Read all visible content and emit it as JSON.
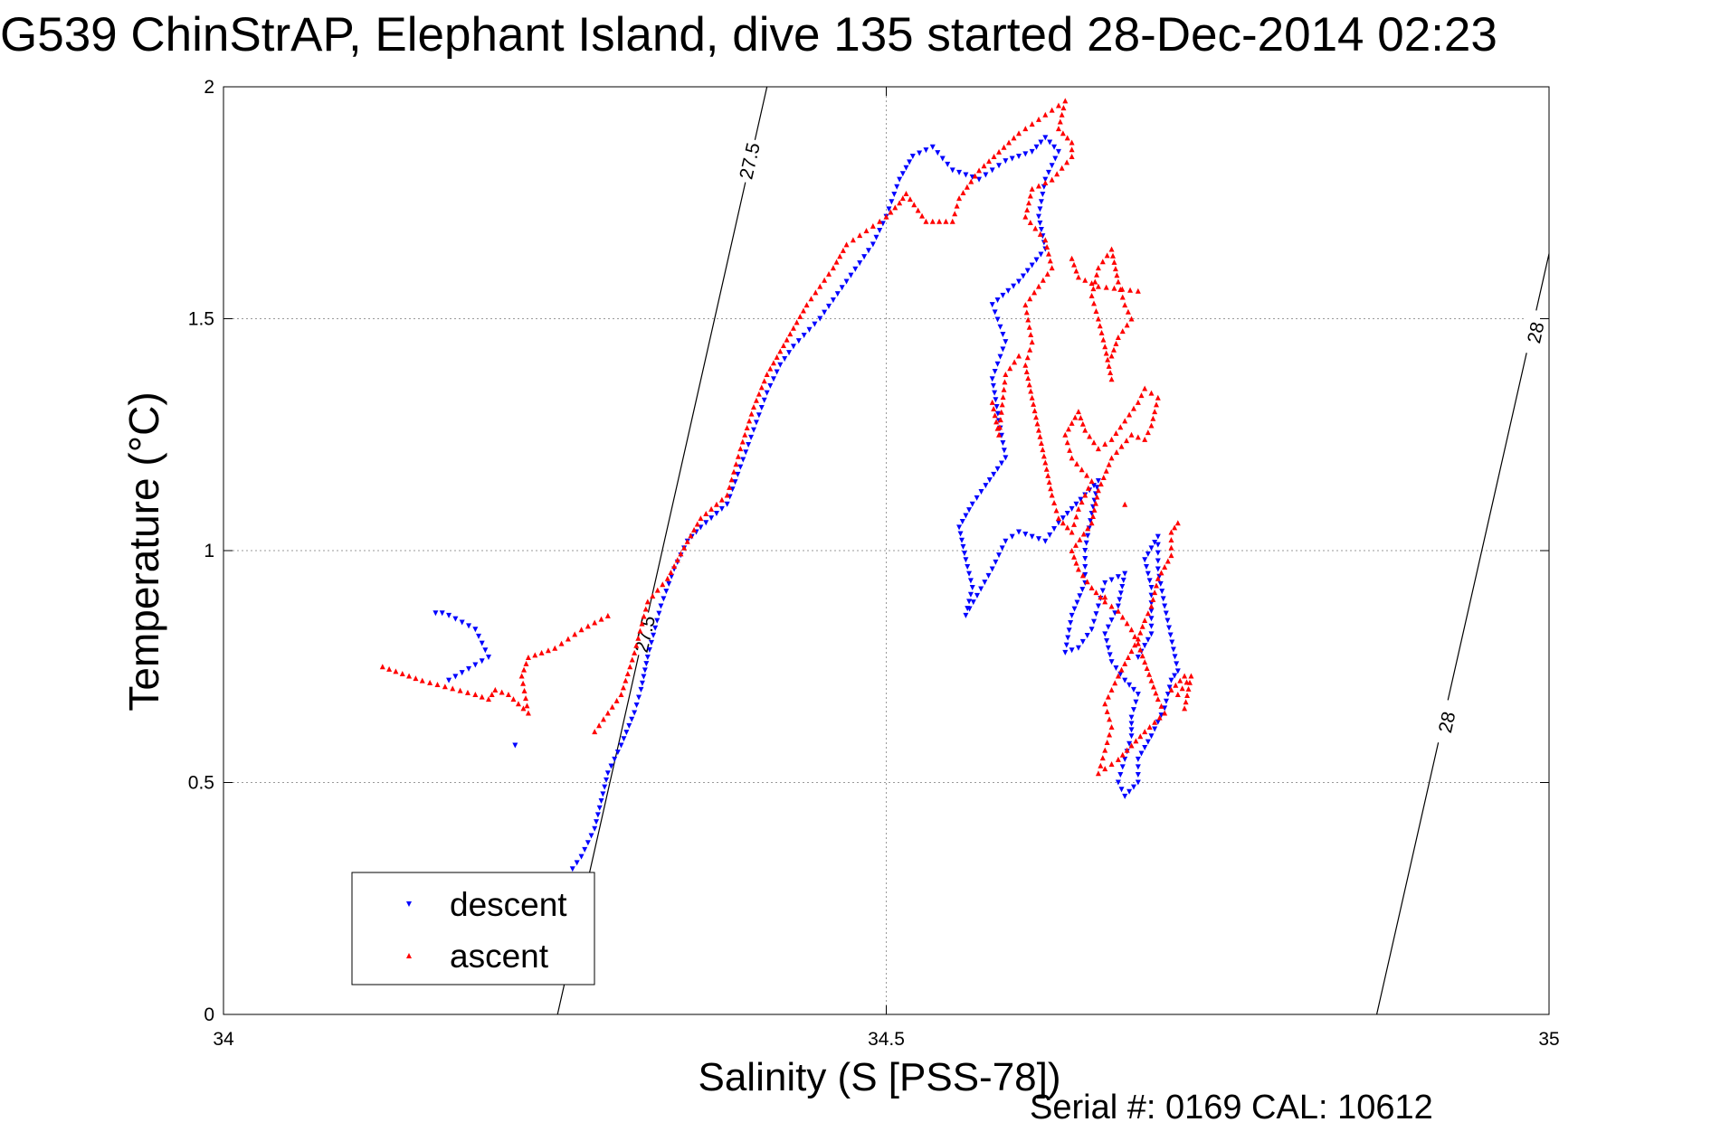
{
  "title": "G539 ChinStrAP, Elephant Island, dive 135 started 28-Dec-2014 02:23",
  "footer_note": "Serial #: 0169 CAL: 10612",
  "colors": {
    "descent": "#0000ff",
    "ascent": "#ff0000",
    "axis": "#000000",
    "grid": "#9a9a9a",
    "isopycnal": "#000000"
  },
  "chart_data": {
    "type": "scatter",
    "xlabel": "Salinity (S [PSS-78])",
    "ylabel": "Temperature (°C)",
    "xlim": [
      34,
      35
    ],
    "ylim": [
      0,
      2
    ],
    "xticks": [
      34,
      34.5,
      35
    ],
    "xtick_labels": [
      "34",
      "34.5",
      "35"
    ],
    "yticks": [
      0,
      0.5,
      1,
      1.5,
      2
    ],
    "ytick_labels": [
      "0",
      "0.5",
      "1",
      "1.5",
      "2"
    ],
    "grid": true,
    "grid_style": "dotted",
    "legend_position": "bottom-left",
    "isopycnals": [
      {
        "label": "27.5",
        "points": [
          [
            34.252,
            0
          ],
          [
            34.41,
            2
          ]
        ],
        "label_positions": [
          [
            34.318,
            0.82
          ],
          [
            34.397,
            1.84
          ]
        ]
      },
      {
        "label": "28",
        "points": [
          [
            34.87,
            0
          ],
          [
            35,
            1.64
          ]
        ],
        "label_positions": [
          [
            34.923,
            0.63
          ],
          [
            34.99,
            1.47
          ]
        ]
      }
    ],
    "series": [
      {
        "name": "descent",
        "marker": "triangle-down",
        "color": "#0000ff",
        "path": [
          [
            34.26,
            0.3
          ],
          [
            34.27,
            0.34
          ],
          [
            34.28,
            0.4
          ],
          [
            34.285,
            0.46
          ],
          [
            34.29,
            0.52
          ],
          [
            34.3,
            0.58
          ],
          [
            34.31,
            0.65
          ],
          [
            34.315,
            0.7
          ],
          [
            34.32,
            0.77
          ],
          [
            34.33,
            0.88
          ],
          [
            34.34,
            0.96
          ],
          [
            34.35,
            1.02
          ],
          [
            34.36,
            1.05
          ],
          [
            34.38,
            1.1
          ],
          [
            34.39,
            1.18
          ],
          [
            34.4,
            1.26
          ],
          [
            34.41,
            1.34
          ],
          [
            34.42,
            1.4
          ],
          [
            34.43,
            1.44
          ],
          [
            34.45,
            1.5
          ],
          [
            34.47,
            1.58
          ],
          [
            34.49,
            1.66
          ],
          [
            34.5,
            1.72
          ],
          [
            34.51,
            1.8
          ],
          [
            34.52,
            1.85
          ],
          [
            34.535,
            1.87
          ],
          [
            34.55,
            1.82
          ],
          [
            34.57,
            1.8
          ],
          [
            34.59,
            1.84
          ],
          [
            34.61,
            1.86
          ],
          [
            34.62,
            1.89
          ],
          [
            34.63,
            1.86
          ],
          [
            34.62,
            1.8
          ],
          [
            34.615,
            1.72
          ],
          [
            34.62,
            1.65
          ],
          [
            34.6,
            1.58
          ],
          [
            34.58,
            1.53
          ],
          [
            34.59,
            1.45
          ],
          [
            34.58,
            1.37
          ],
          [
            34.585,
            1.28
          ],
          [
            34.59,
            1.2
          ],
          [
            34.575,
            1.14
          ],
          [
            34.565,
            1.1
          ],
          [
            34.555,
            1.05
          ],
          [
            34.56,
            0.98
          ],
          [
            34.565,
            0.92
          ],
          [
            34.56,
            0.86
          ],
          [
            34.58,
            0.96
          ],
          [
            34.59,
            1.02
          ],
          [
            34.6,
            1.04
          ],
          [
            34.61,
            1.03
          ],
          [
            34.62,
            1.02
          ],
          [
            34.63,
            1.06
          ],
          [
            34.64,
            1.09
          ],
          [
            34.65,
            1.12
          ],
          [
            34.66,
            1.15
          ],
          [
            34.655,
            1.08
          ],
          [
            34.65,
            1.0
          ],
          [
            34.65,
            0.93
          ],
          [
            34.64,
            0.86
          ],
          [
            34.635,
            0.78
          ],
          [
            34.645,
            0.79
          ],
          [
            34.655,
            0.83
          ],
          [
            34.66,
            0.88
          ],
          [
            34.665,
            0.93
          ],
          [
            34.68,
            0.95
          ],
          [
            34.675,
            0.88
          ],
          [
            34.665,
            0.82
          ],
          [
            34.67,
            0.76
          ],
          [
            34.68,
            0.72
          ],
          [
            34.69,
            0.69
          ],
          [
            34.685,
            0.64
          ],
          [
            34.685,
            0.6
          ],
          [
            34.68,
            0.55
          ],
          [
            34.675,
            0.5
          ],
          [
            34.68,
            0.47
          ],
          [
            34.69,
            0.5
          ],
          [
            34.69,
            0.55
          ],
          [
            34.7,
            0.6
          ],
          [
            34.71,
            0.66
          ],
          [
            34.715,
            0.72
          ],
          [
            34.72,
            0.74
          ],
          [
            34.71,
            0.88
          ],
          [
            34.705,
            0.96
          ],
          [
            34.705,
            1.03
          ],
          [
            34.695,
            0.98
          ],
          [
            34.7,
            0.92
          ],
          [
            34.7,
            0.82
          ],
          [
            34.69,
            0.77
          ],
          [
            34.17,
            0.72
          ],
          [
            34.2,
            0.77
          ],
          [
            34.19,
            0.83
          ],
          [
            34.17,
            0.86
          ],
          [
            34.165,
            0.865
          ],
          [
            34.16,
            0.865
          ],
          [
            34.22,
            0.58
          ]
        ]
      },
      {
        "name": "ascent",
        "marker": "triangle-up",
        "color": "#ff0000",
        "path": [
          [
            34.12,
            0.75
          ],
          [
            34.15,
            0.72
          ],
          [
            34.19,
            0.69
          ],
          [
            34.2,
            0.68
          ],
          [
            34.205,
            0.7
          ],
          [
            34.215,
            0.69
          ],
          [
            34.23,
            0.65
          ],
          [
            34.225,
            0.73
          ],
          [
            34.23,
            0.77
          ],
          [
            34.25,
            0.79
          ],
          [
            34.27,
            0.83
          ],
          [
            34.29,
            0.86
          ],
          [
            34.28,
            0.61
          ],
          [
            34.3,
            0.69
          ],
          [
            34.31,
            0.78
          ],
          [
            34.32,
            0.89
          ],
          [
            34.335,
            0.94
          ],
          [
            34.35,
            1.02
          ],
          [
            34.36,
            1.07
          ],
          [
            34.38,
            1.12
          ],
          [
            34.39,
            1.22
          ],
          [
            34.4,
            1.31
          ],
          [
            34.41,
            1.38
          ],
          [
            34.42,
            1.43
          ],
          [
            34.43,
            1.48
          ],
          [
            34.44,
            1.53
          ],
          [
            34.45,
            1.57
          ],
          [
            34.46,
            1.61
          ],
          [
            34.47,
            1.66
          ],
          [
            34.49,
            1.7
          ],
          [
            34.5,
            1.72
          ],
          [
            34.51,
            1.75
          ],
          [
            34.515,
            1.77
          ],
          [
            34.53,
            1.71
          ],
          [
            34.55,
            1.71
          ],
          [
            34.555,
            1.76
          ],
          [
            34.57,
            1.82
          ],
          [
            34.585,
            1.86
          ],
          [
            34.6,
            1.9
          ],
          [
            34.615,
            1.93
          ],
          [
            34.625,
            1.95
          ],
          [
            34.635,
            1.97
          ],
          [
            34.63,
            1.91
          ],
          [
            34.64,
            1.88
          ],
          [
            34.64,
            1.85
          ],
          [
            34.625,
            1.8
          ],
          [
            34.61,
            1.78
          ],
          [
            34.605,
            1.72
          ],
          [
            34.62,
            1.67
          ],
          [
            34.625,
            1.61
          ],
          [
            34.615,
            1.57
          ],
          [
            34.605,
            1.53
          ],
          [
            34.61,
            1.45
          ],
          [
            34.605,
            1.4
          ],
          [
            34.61,
            1.33
          ],
          [
            34.615,
            1.26
          ],
          [
            34.62,
            1.19
          ],
          [
            34.625,
            1.12
          ],
          [
            34.63,
            1.07
          ],
          [
            34.64,
            1.04
          ],
          [
            34.645,
            1.09
          ],
          [
            34.655,
            1.15
          ],
          [
            34.64,
            1.2
          ],
          [
            34.635,
            1.25
          ],
          [
            34.645,
            1.3
          ],
          [
            34.65,
            1.26
          ],
          [
            34.66,
            1.22
          ],
          [
            34.67,
            1.24
          ],
          [
            34.68,
            1.28
          ],
          [
            34.69,
            1.32
          ],
          [
            34.695,
            1.35
          ],
          [
            34.705,
            1.33
          ],
          [
            34.7,
            1.27
          ],
          [
            34.695,
            1.24
          ],
          [
            34.685,
            1.25
          ],
          [
            34.67,
            1.2
          ],
          [
            34.66,
            1.13
          ],
          [
            34.655,
            1.06
          ],
          [
            34.64,
            1.0
          ],
          [
            34.645,
            0.96
          ],
          [
            34.655,
            0.92
          ],
          [
            34.665,
            0.89
          ],
          [
            34.675,
            0.87
          ],
          [
            34.685,
            0.83
          ],
          [
            34.69,
            0.8
          ],
          [
            34.695,
            0.76
          ],
          [
            34.7,
            0.72
          ],
          [
            34.705,
            0.68
          ],
          [
            34.71,
            0.65
          ],
          [
            34.695,
            0.61
          ],
          [
            34.685,
            0.58
          ],
          [
            34.675,
            0.55
          ],
          [
            34.66,
            0.52
          ],
          [
            34.665,
            0.57
          ],
          [
            34.67,
            0.62
          ],
          [
            34.665,
            0.67
          ],
          [
            34.675,
            0.73
          ],
          [
            34.69,
            0.81
          ],
          [
            34.695,
            0.85
          ],
          [
            34.7,
            0.88
          ],
          [
            34.705,
            0.94
          ],
          [
            34.715,
            0.99
          ],
          [
            34.715,
            1.04
          ],
          [
            34.72,
            1.06
          ],
          [
            34.67,
            1.37
          ],
          [
            34.665,
            1.44
          ],
          [
            34.66,
            1.5
          ],
          [
            34.655,
            1.55
          ],
          [
            34.66,
            1.61
          ],
          [
            34.67,
            1.65
          ],
          [
            34.675,
            1.58
          ],
          [
            34.68,
            1.53
          ],
          [
            34.685,
            1.5
          ],
          [
            34.675,
            1.46
          ],
          [
            34.67,
            1.42
          ],
          [
            34.58,
            1.32
          ],
          [
            34.585,
            1.25
          ],
          [
            34.59,
            1.38
          ],
          [
            34.6,
            1.42
          ],
          [
            34.64,
            1.63
          ],
          [
            34.645,
            1.59
          ],
          [
            34.66,
            1.57
          ],
          [
            34.69,
            1.56
          ],
          [
            34.68,
            1.1
          ],
          [
            34.665,
            0.9
          ],
          [
            34.725,
            0.73
          ],
          [
            34.715,
            0.7
          ],
          [
            34.72,
            0.69
          ],
          [
            34.73,
            0.73
          ],
          [
            34.725,
            0.66
          ]
        ]
      }
    ]
  }
}
